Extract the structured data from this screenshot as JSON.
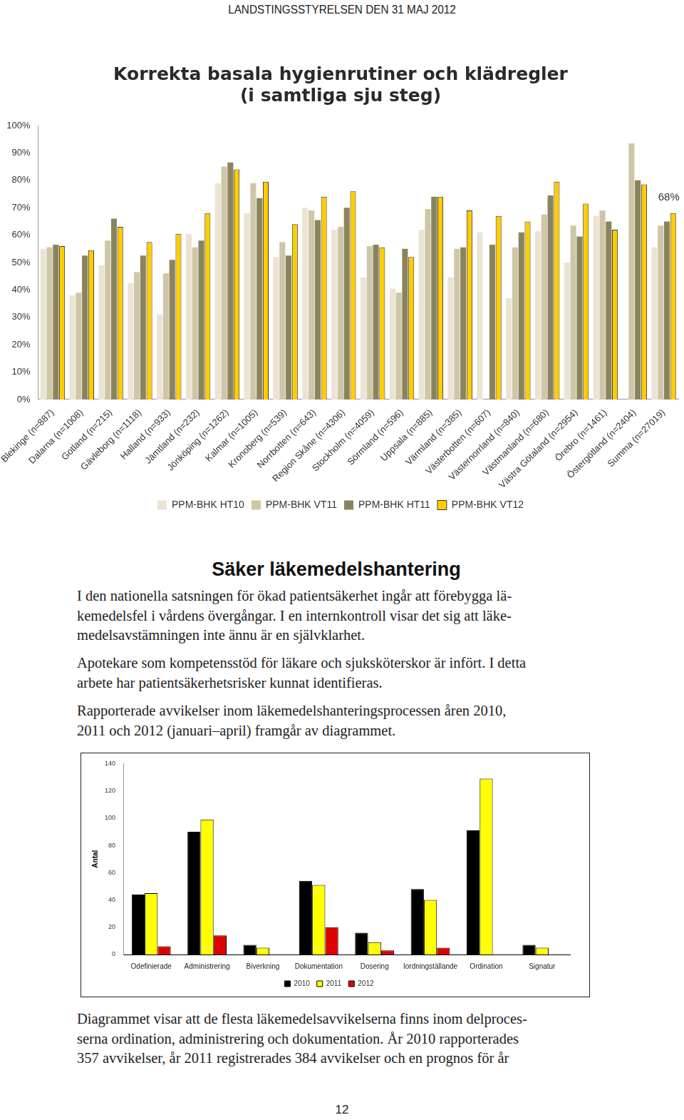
{
  "header": "LANDSTINGSSTYRELSEN DEN 31 MAJ 2012",
  "chart_data": [
    {
      "type": "bar",
      "title": [
        "Korrekta basala hygienrutiner och klädregler",
        "(i samtliga sju steg)"
      ],
      "categories": [
        "Blekinge (n=887)",
        "Dalarna (n=1008)",
        "Gotland (n=215)",
        "Gävleborg (n=1118)",
        "Halland (n=933)",
        "Jämtland (n=232)",
        "Jönköping (n=1262)",
        "Kalmar (n=1005)",
        "Kronoberg (n=539)",
        "Norrbotten (n=643)",
        "Region Skåne (n=4306)",
        "Stockholm (n=4059)",
        "Sörmland (n=596)",
        "Uppsala (n=885)",
        "Värmland (n=385)",
        "Västerbotten (n=607)",
        "Västernorrland (n=840)",
        "Västmanland (n=680)",
        "Västra Götaland (n=2954)",
        "Örebro (n=1461)",
        "Östergötland (n=2404)",
        "Summa (n=27019)"
      ],
      "series": [
        {
          "name": "PPM-BHK HT10",
          "color": "#ebe3d3",
          "values": [
            55,
            38,
            49,
            42.5,
            31,
            60.5,
            79,
            68,
            52,
            70,
            62,
            44.5,
            40.5,
            62,
            44.5,
            61,
            37,
            61.5,
            50,
            67,
            null,
            55.5
          ]
        },
        {
          "name": "PPM-BHK VT11",
          "color": "#cec6a6",
          "values": [
            55.5,
            39,
            58,
            46.5,
            46,
            55.5,
            85,
            79,
            57.5,
            69,
            63,
            56,
            39,
            69.5,
            55,
            null,
            55.5,
            67.5,
            63.5,
            69,
            93.5,
            63.5
          ]
        },
        {
          "name": "PPM-BHK HT11",
          "color": "#8a845e",
          "values": [
            56.5,
            52.5,
            66,
            52.5,
            51,
            58,
            86.5,
            73.5,
            52.5,
            65.5,
            70,
            56.5,
            55,
            74,
            55.5,
            56.5,
            61,
            74.5,
            59.5,
            65,
            80,
            65
          ]
        },
        {
          "name": "PPM-BHK VT12",
          "color": "#ffcc00",
          "values": [
            56,
            54.5,
            63,
            57.5,
            60.5,
            68,
            84,
            79.5,
            64,
            74,
            76,
            55.5,
            52,
            74,
            69,
            67,
            65,
            79.5,
            71.5,
            62,
            78.5,
            68
          ]
        }
      ],
      "ylim": [
        0,
        100
      ],
      "yticks": [
        {
          "value": 0,
          "label": "0%"
        },
        {
          "value": 10,
          "label": "10%"
        },
        {
          "value": 20,
          "label": "20%"
        },
        {
          "value": 30,
          "label": "30%"
        },
        {
          "value": 40,
          "label": "40%"
        },
        {
          "value": 50,
          "label": "50%"
        },
        {
          "value": 60,
          "label": "60%"
        },
        {
          "value": 70,
          "label": "70%"
        },
        {
          "value": 80,
          "label": "80%"
        },
        {
          "value": 90,
          "label": "90%"
        },
        {
          "value": 100,
          "label": "100%"
        }
      ],
      "grid": false,
      "legend": "bottom",
      "annotations": [
        {
          "text": "68%",
          "category": "Summa (n=27019)",
          "value": 68
        }
      ]
    },
    {
      "type": "bar",
      "y_label": "Antal",
      "categories": [
        "Odefinierade",
        "Administrering",
        "Biverkning",
        "Dokumentation",
        "Dosering",
        "Iordningställande",
        "Ordination",
        "Signatur"
      ],
      "series": [
        {
          "name": "2010",
          "color": "#000000",
          "values": [
            44,
            90,
            7,
            54,
            16,
            48,
            91,
            7
          ]
        },
        {
          "name": "2011",
          "color": "#ffff00",
          "values": [
            45,
            99,
            5,
            51,
            9,
            40,
            129,
            5
          ]
        },
        {
          "name": "2012",
          "color": "#e00000",
          "values": [
            6,
            14,
            null,
            20,
            3,
            5,
            null,
            null
          ]
        }
      ],
      "ylim": [
        0,
        140
      ],
      "yticks": [
        0,
        20,
        40,
        60,
        80,
        100,
        120,
        140
      ],
      "grid": false,
      "legend": "bottom"
    }
  ],
  "section": {
    "heading": "Säker läkemedelshantering",
    "paragraphs": [
      [
        "I den nationella satsningen för ökad patientsäkerhet ingår att förebygga lä-",
        "kemedelsfel i vårdens övergångar. I en internkontroll visar det sig att läke-",
        "medelsavstämningen inte ännu är en självklarhet."
      ],
      [
        "Apotekare som kompetensstöd för läkare och sjuksköterskor är infört. I detta",
        "arbete har patientsäkerhetsrisker kunnat identifieras."
      ],
      [
        "Rapporterade avvikelser inom läkemedelshanteringsprocessen åren 2010,",
        "2011 och 2012 (januari–april) framgår av diagrammet."
      ]
    ]
  },
  "closing_paragraph": [
    "Diagrammet visar att de flesta läkemedelsavvikelserna finns inom delproces-",
    "serna ordination, administrering och dokumentation. År 2010 rapporterades",
    "357 avvikelser, år 2011 registrerades 384 avvikelser och en prognos för år"
  ],
  "page_number": 12
}
